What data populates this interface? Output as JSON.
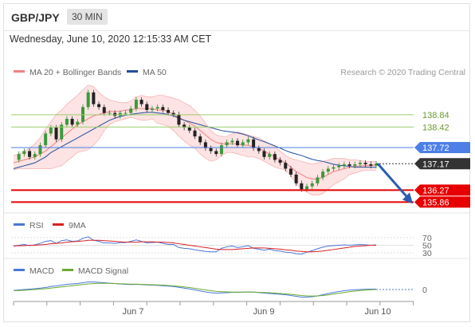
{
  "header": {
    "symbol": "GBP/JPY",
    "timeframe": "30 MIN",
    "datetime": "Wednesday, June 10, 2020 12:15:33 AM CET"
  },
  "legend": {
    "bollinger": "MA 20 + Bollinger Bands",
    "ma50": "MA 50",
    "credit": "Research © 2020 Trading Central",
    "rsi": "RSI",
    "rsi_ma": "9MA",
    "macd": "MACD",
    "macd_signal": "MACD Signal"
  },
  "colors": {
    "bollinger": "#f08080",
    "band_fill": "#fde3e3",
    "ma50": "#1f4e9c",
    "resistance": "#9acd6a",
    "pivot": "#4d7fe6",
    "support": "#e60000",
    "current": "#333333",
    "forecast_arrow": "#2a5db0",
    "rsi": "#4a78d9",
    "rsi_ma": "#d92020",
    "macd": "#4a78d9",
    "macd_signal": "#6aaa30"
  },
  "chart_data": [
    {
      "type": "candlestick",
      "title": "GBP/JPY 30 MIN",
      "x_ticks": [
        "Jun 7",
        "Jun 9",
        "Jun 10"
      ],
      "ylim": [
        135.6,
        139.95
      ],
      "levels": [
        {
          "value": 138.84,
          "label": "138.84",
          "kind": "resistance"
        },
        {
          "value": 138.42,
          "label": "138.42",
          "kind": "resistance"
        },
        {
          "value": 137.72,
          "label": "137.72",
          "kind": "pivot"
        },
        {
          "value": 137.17,
          "label": "137.17",
          "kind": "current"
        },
        {
          "value": 136.27,
          "label": "136.27",
          "kind": "support"
        },
        {
          "value": 135.86,
          "label": "135.86",
          "kind": "support"
        }
      ],
      "forecast": {
        "from": 137.17,
        "to": 135.86,
        "direction": "down"
      },
      "close_path": [
        137.3,
        137.5,
        137.6,
        137.4,
        137.5,
        137.8,
        138.2,
        138.4,
        138.0,
        138.5,
        138.7,
        138.5,
        138.6,
        139.1,
        139.6,
        139.2,
        139.1,
        138.9,
        138.9,
        138.8,
        138.9,
        138.9,
        139.05,
        139.35,
        139.2,
        139.0,
        139.05,
        139.1,
        139.0,
        138.9,
        138.85,
        138.5,
        138.4,
        138.3,
        138.1,
        137.9,
        137.7,
        137.6,
        137.5,
        137.8,
        137.9,
        137.95,
        137.8,
        137.9,
        138.0,
        137.7,
        137.6,
        137.4,
        137.5,
        137.3,
        137.2,
        137.0,
        136.8,
        136.5,
        136.3,
        136.4,
        136.5,
        136.7,
        136.9,
        137.0,
        137.05,
        137.1,
        137.15,
        137.1,
        137.15,
        137.2,
        137.15,
        137.1,
        137.17
      ],
      "bollinger": {
        "middle": [
          137.2,
          137.25,
          137.3,
          137.35,
          137.4,
          137.5,
          137.6,
          137.75,
          137.9,
          138.05,
          138.2,
          138.35,
          138.5,
          138.6,
          138.7,
          138.8,
          138.85,
          138.9,
          138.95,
          138.95,
          138.95,
          139.0,
          139.0,
          139.05,
          139.05,
          139.05,
          139.05,
          139.0,
          139.0,
          138.95,
          138.85,
          138.75,
          138.65,
          138.55,
          138.45,
          138.3,
          138.15,
          138.0,
          137.9,
          137.85,
          137.85,
          137.85,
          137.85,
          137.8,
          137.8,
          137.75,
          137.7,
          137.6,
          137.5,
          137.4,
          137.3,
          137.2,
          137.05,
          136.9,
          136.8,
          136.7,
          136.65,
          136.65,
          136.7,
          136.8,
          136.9,
          136.95,
          137.0,
          137.05,
          137.08,
          137.1,
          137.1,
          137.12,
          137.12
        ],
        "upper": [
          137.45,
          137.5,
          137.6,
          137.7,
          137.85,
          138.05,
          138.35,
          138.6,
          138.85,
          139.0,
          139.2,
          139.35,
          139.5,
          139.7,
          139.85,
          139.8,
          139.6,
          139.45,
          139.35,
          139.3,
          139.25,
          139.25,
          139.3,
          139.45,
          139.5,
          139.45,
          139.45,
          139.5,
          139.5,
          139.45,
          139.4,
          139.35,
          139.25,
          139.15,
          139.0,
          138.8,
          138.55,
          138.3,
          138.15,
          138.1,
          138.1,
          138.2,
          138.25,
          138.2,
          138.15,
          138.1,
          138.05,
          137.95,
          137.85,
          137.75,
          137.6,
          137.45,
          137.35,
          137.3,
          137.25,
          137.2,
          137.15,
          137.2,
          137.25,
          137.3,
          137.35,
          137.35,
          137.35,
          137.3,
          137.3,
          137.28,
          137.25,
          137.25,
          137.25
        ],
        "lower": [
          136.95,
          137.0,
          137.0,
          137.0,
          137.0,
          137.0,
          137.0,
          137.0,
          137.05,
          137.1,
          137.25,
          137.4,
          137.55,
          137.6,
          137.65,
          137.8,
          138.0,
          138.3,
          138.5,
          138.6,
          138.65,
          138.7,
          138.75,
          138.7,
          138.65,
          138.65,
          138.7,
          138.55,
          138.5,
          138.45,
          138.3,
          138.1,
          137.95,
          137.8,
          137.7,
          137.5,
          137.35,
          137.25,
          137.3,
          137.45,
          137.55,
          137.55,
          137.5,
          137.45,
          137.4,
          137.4,
          137.35,
          137.25,
          137.15,
          137.05,
          137.0,
          136.95,
          136.75,
          136.5,
          136.3,
          136.2,
          136.1,
          136.1,
          136.15,
          136.3,
          136.45,
          136.55,
          136.65,
          136.8,
          136.85,
          136.9,
          136.95,
          136.95,
          136.95
        ]
      },
      "ma50": [
        137.0,
        137.05,
        137.1,
        137.15,
        137.2,
        137.3,
        137.4,
        137.55,
        137.65,
        137.75,
        137.85,
        137.95,
        138.05,
        138.15,
        138.25,
        138.35,
        138.45,
        138.55,
        138.65,
        138.72,
        138.78,
        138.82,
        138.85,
        138.88,
        138.9,
        138.92,
        138.92,
        138.9,
        138.88,
        138.85,
        138.8,
        138.72,
        138.65,
        138.6,
        138.55,
        138.5,
        138.45,
        138.4,
        138.35,
        138.3,
        138.27,
        138.25,
        138.22,
        138.18,
        138.12,
        138.05,
        137.98,
        137.92,
        137.85,
        137.78,
        137.7,
        137.62,
        137.55,
        137.5,
        137.45,
        137.38,
        137.32,
        137.28,
        137.25,
        137.2,
        137.15,
        137.12,
        137.1,
        137.08,
        137.05,
        137.05,
        137.05,
        137.05,
        137.05
      ]
    },
    {
      "type": "line",
      "title": "RSI",
      "ticks": [
        70,
        50,
        30
      ],
      "ylim": [
        20,
        80
      ],
      "series": [
        {
          "name": "RSI",
          "values": [
            48,
            50,
            52,
            49,
            51,
            55,
            60,
            62,
            55,
            62,
            64,
            60,
            61,
            68,
            72,
            63,
            60,
            56,
            56,
            55,
            57,
            57,
            60,
            64,
            60,
            56,
            57,
            58,
            55,
            52,
            52,
            44,
            42,
            41,
            38,
            36,
            34,
            33,
            33,
            42,
            46,
            48,
            44,
            46,
            49,
            42,
            40,
            37,
            40,
            36,
            35,
            32,
            31,
            28,
            27,
            32,
            36,
            41,
            45,
            48,
            49,
            50,
            51,
            50,
            51,
            52,
            51,
            50,
            51
          ]
        },
        {
          "name": "9MA",
          "values": [
            48,
            49,
            49,
            50,
            50,
            51,
            52,
            54,
            55,
            56,
            58,
            59,
            60,
            61,
            63,
            63,
            63,
            62,
            61,
            60,
            59,
            58,
            58,
            58,
            59,
            59,
            59,
            58,
            58,
            57,
            56,
            54,
            52,
            50,
            48,
            46,
            44,
            42,
            40,
            39,
            39,
            39,
            40,
            41,
            42,
            43,
            43,
            43,
            42,
            41,
            40,
            38,
            37,
            35,
            34,
            33,
            33,
            34,
            35,
            37,
            39,
            41,
            43,
            45,
            47,
            48,
            49,
            50,
            50
          ]
        }
      ]
    },
    {
      "type": "line",
      "title": "MACD",
      "ticks": [
        0
      ],
      "ylim": [
        -0.6,
        0.6
      ],
      "series": [
        {
          "name": "MACD",
          "values": [
            -0.05,
            -0.02,
            0.0,
            0.02,
            0.04,
            0.07,
            0.1,
            0.15,
            0.18,
            0.22,
            0.26,
            0.28,
            0.3,
            0.34,
            0.38,
            0.38,
            0.36,
            0.34,
            0.32,
            0.3,
            0.28,
            0.26,
            0.25,
            0.26,
            0.25,
            0.23,
            0.22,
            0.21,
            0.19,
            0.17,
            0.15,
            0.11,
            0.07,
            0.03,
            -0.02,
            -0.07,
            -0.12,
            -0.16,
            -0.18,
            -0.17,
            -0.16,
            -0.14,
            -0.14,
            -0.13,
            -0.12,
            -0.13,
            -0.15,
            -0.18,
            -0.2,
            -0.22,
            -0.24,
            -0.26,
            -0.3,
            -0.34,
            -0.38,
            -0.38,
            -0.36,
            -0.32,
            -0.26,
            -0.2,
            -0.15,
            -0.1,
            -0.06,
            -0.03,
            -0.01,
            0.0,
            0.01,
            0.02,
            0.02
          ]
        },
        {
          "name": "MACD Signal",
          "values": [
            -0.06,
            -0.05,
            -0.04,
            -0.02,
            0.0,
            0.02,
            0.04,
            0.07,
            0.1,
            0.13,
            0.16,
            0.19,
            0.22,
            0.25,
            0.28,
            0.3,
            0.31,
            0.31,
            0.31,
            0.3,
            0.29,
            0.28,
            0.27,
            0.27,
            0.26,
            0.25,
            0.24,
            0.23,
            0.22,
            0.2,
            0.18,
            0.16,
            0.13,
            0.1,
            0.06,
            0.02,
            -0.02,
            -0.06,
            -0.09,
            -0.11,
            -0.12,
            -0.13,
            -0.13,
            -0.13,
            -0.13,
            -0.13,
            -0.14,
            -0.15,
            -0.16,
            -0.18,
            -0.2,
            -0.22,
            -0.24,
            -0.27,
            -0.3,
            -0.32,
            -0.33,
            -0.32,
            -0.3,
            -0.27,
            -0.23,
            -0.19,
            -0.15,
            -0.11,
            -0.08,
            -0.05,
            -0.03,
            -0.01,
            0.0
          ]
        }
      ]
    }
  ]
}
